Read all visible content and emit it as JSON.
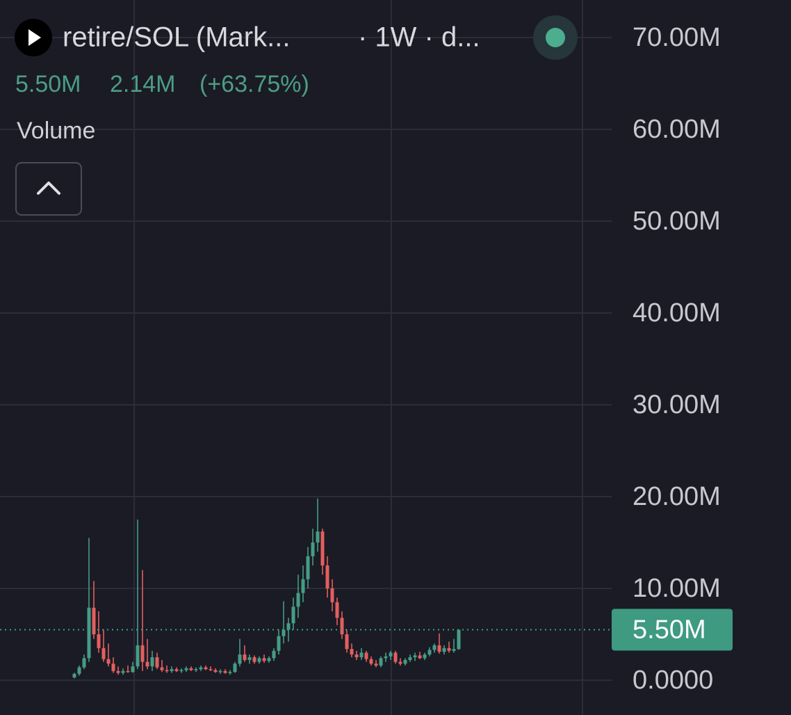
{
  "chart_data": {
    "type": "candlestick",
    "title": "retire/SOL (Mark...",
    "subtitle": "· 1W · d...",
    "pane_label": "Volume",
    "last_price": {
      "value": 5.5,
      "label": "5.50M"
    },
    "change": {
      "value": 2.14,
      "label": "2.14M"
    },
    "change_pct": "(+63.75%)",
    "up_color": "#459d86",
    "down_color": "#e35f5f",
    "ylim": [
      0,
      70
    ],
    "yticks": [
      {
        "value": 0,
        "label": "0.0000"
      },
      {
        "value": 10,
        "label": "10.00M"
      },
      {
        "value": 20,
        "label": "20.00M"
      },
      {
        "value": 30,
        "label": "30.00M"
      },
      {
        "value": 40,
        "label": "40.00M"
      },
      {
        "value": 50,
        "label": "50.00M"
      },
      {
        "value": 60,
        "label": "60.00M"
      },
      {
        "value": 70,
        "label": "70.00M"
      }
    ],
    "grid": true,
    "open": [
      0.3,
      0.7,
      1.4,
      2.4,
      7.9,
      5.0,
      3.5,
      2.3,
      1.8,
      1.0,
      0.8,
      1.0,
      0.9,
      1.5,
      3.8,
      2.0,
      1.5,
      2.5,
      1.4,
      1.1,
      1.0,
      1.2,
      1.0,
      1.1,
      1.3,
      1.1,
      1.2,
      1.4,
      1.2,
      1.1,
      0.9,
      1.0,
      0.8,
      0.9,
      1.8,
      2.8,
      2.2,
      2.5,
      2.0,
      2.4,
      2.1,
      2.4,
      3.2,
      4.8,
      5.5,
      6.2,
      8.0,
      9.5,
      11.0,
      13.5,
      15.0,
      16.2,
      12.5,
      10.0,
      8.5,
      6.8,
      5.0,
      3.4,
      2.8,
      2.5,
      3.0,
      2.3,
      1.8,
      1.6,
      2.4,
      2.6,
      3.0,
      2.0,
      1.8,
      2.2,
      2.5,
      2.7,
      2.4,
      2.8,
      3.3,
      3.8,
      3.1,
      3.5,
      3.2,
      3.4
    ],
    "high": [
      0.8,
      1.6,
      2.8,
      15.5,
      10.8,
      7.5,
      5.5,
      4.0,
      2.5,
      1.5,
      1.3,
      1.6,
      2.0,
      17.5,
      12.0,
      4.5,
      3.2,
      3.0,
      2.2,
      1.6,
      1.5,
      1.4,
      1.3,
      1.5,
      1.5,
      1.4,
      1.6,
      1.6,
      1.5,
      1.3,
      1.2,
      1.2,
      1.1,
      2.0,
      4.5,
      3.8,
      2.8,
      2.7,
      2.6,
      2.8,
      2.6,
      3.5,
      5.5,
      8.6,
      6.8,
      9.0,
      11.5,
      12.5,
      14.5,
      16.5,
      19.8,
      16.5,
      13.5,
      11.0,
      9.0,
      7.5,
      5.5,
      4.0,
      3.2,
      3.5,
      3.2,
      2.6,
      2.2,
      2.6,
      3.0,
      3.2,
      3.2,
      2.4,
      2.4,
      2.8,
      3.0,
      3.1,
      3.0,
      3.6,
      4.0,
      5.1,
      3.8,
      4.2,
      4.5,
      5.5
    ],
    "low": [
      0.2,
      0.5,
      1.2,
      2.0,
      4.5,
      3.0,
      2.0,
      1.5,
      0.8,
      0.6,
      0.6,
      0.8,
      0.8,
      1.2,
      1.0,
      1.2,
      1.0,
      1.2,
      0.9,
      0.8,
      0.8,
      0.9,
      0.8,
      0.9,
      1.0,
      0.9,
      1.0,
      1.1,
      1.0,
      0.8,
      0.7,
      0.7,
      0.6,
      0.8,
      1.5,
      2.0,
      1.8,
      1.8,
      1.8,
      1.9,
      1.9,
      2.1,
      2.8,
      4.0,
      4.2,
      5.5,
      6.8,
      8.5,
      10.0,
      12.5,
      14.0,
      11.5,
      9.0,
      7.5,
      6.0,
      4.5,
      3.0,
      2.5,
      2.2,
      2.2,
      2.0,
      1.6,
      1.4,
      1.4,
      2.0,
      2.2,
      1.8,
      1.6,
      1.6,
      2.0,
      2.1,
      2.3,
      2.2,
      2.6,
      3.0,
      2.9,
      2.8,
      3.0,
      3.0,
      3.3
    ],
    "close": [
      0.7,
      1.4,
      2.4,
      7.9,
      5.0,
      3.5,
      2.3,
      1.8,
      1.0,
      0.8,
      1.0,
      0.9,
      1.5,
      3.8,
      2.0,
      1.5,
      2.5,
      1.4,
      1.1,
      1.0,
      1.2,
      1.0,
      1.1,
      1.3,
      1.1,
      1.2,
      1.4,
      1.2,
      1.1,
      0.9,
      1.0,
      0.8,
      0.9,
      1.8,
      2.8,
      2.2,
      2.5,
      2.0,
      2.4,
      2.1,
      2.4,
      3.2,
      4.8,
      5.5,
      6.2,
      8.0,
      9.5,
      11.0,
      13.5,
      15.0,
      16.2,
      12.5,
      10.0,
      8.5,
      6.8,
      5.0,
      3.4,
      2.8,
      2.5,
      3.0,
      2.3,
      1.8,
      1.6,
      2.4,
      2.6,
      3.0,
      2.0,
      1.8,
      2.2,
      2.5,
      2.7,
      2.4,
      2.8,
      3.3,
      3.8,
      3.1,
      3.5,
      3.2,
      3.4,
      5.5
    ]
  }
}
